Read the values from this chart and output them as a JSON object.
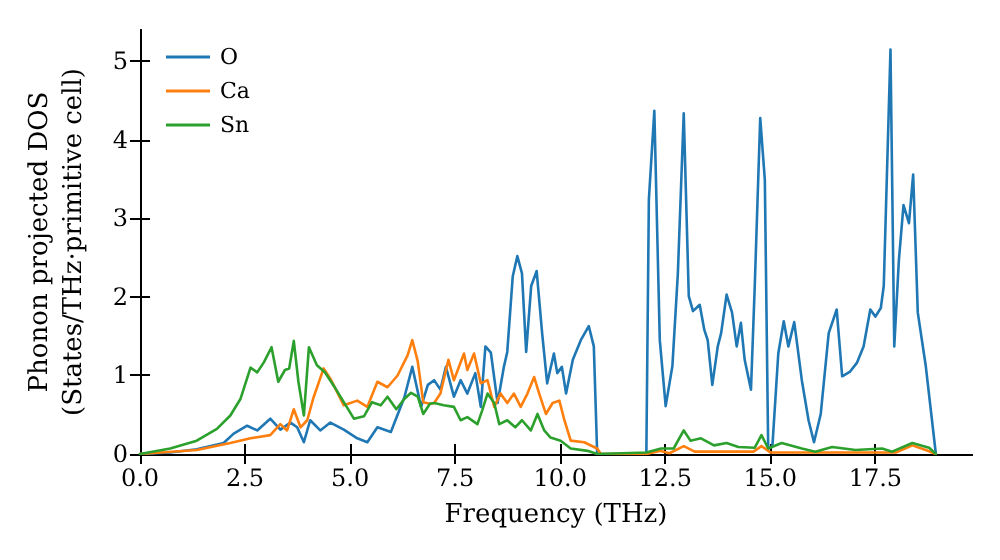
{
  "chart_data": {
    "type": "line",
    "xlabel": "Frequency (THz)",
    "ylabel": "Phonon projected DOS\n(States/THz·primitive cell)",
    "xlim": [
      0,
      19.8
    ],
    "ylim": [
      0,
      5.4
    ],
    "xticks": [
      {
        "value": 0,
        "label": "0.0"
      },
      {
        "value": 2.5,
        "label": "2.5"
      },
      {
        "value": 5,
        "label": "5.0"
      },
      {
        "value": 7.5,
        "label": "7.5"
      },
      {
        "value": 10,
        "label": "10.0"
      },
      {
        "value": 12.5,
        "label": "12.5"
      },
      {
        "value": 15,
        "label": "15.0"
      },
      {
        "value": 17.5,
        "label": "17.5"
      }
    ],
    "yticks": [
      0,
      1,
      2,
      3,
      4,
      5
    ],
    "grid": false,
    "legend": "top left",
    "marker": "none",
    "line_style": "solid",
    "series": [
      {
        "name": "O",
        "color": "#1f77b4",
        "x": [
          0,
          0.72,
          1.35,
          1.99,
          2.23,
          2.55,
          2.79,
          3.1,
          3.34,
          3.58,
          3.74,
          3.9,
          4.05,
          4.29,
          4.53,
          4.85,
          5.17,
          5.41,
          5.65,
          5.97,
          6.29,
          6.48,
          6.69,
          6.85,
          7.0,
          7.15,
          7.28,
          7.47,
          7.63,
          7.79,
          7.98,
          8.11,
          8.22,
          8.35,
          8.51,
          8.66,
          8.74,
          8.87,
          8.98,
          9.09,
          9.19,
          9.31,
          9.44,
          9.57,
          9.69,
          9.85,
          9.93,
          10.04,
          10.14,
          10.3,
          10.49,
          10.68,
          10.8,
          10.88,
          12.05,
          12.11,
          12.24,
          12.37,
          12.51,
          12.67,
          12.8,
          12.94,
          13.06,
          13.16,
          13.32,
          13.43,
          13.51,
          13.62,
          13.75,
          13.83,
          13.96,
          14.09,
          14.2,
          14.3,
          14.39,
          14.54,
          14.63,
          14.76,
          14.87,
          14.95,
          15.05,
          15.19,
          15.32,
          15.43,
          15.57,
          15.75,
          15.91,
          16.04,
          16.2,
          16.39,
          16.58,
          16.71,
          16.9,
          17.06,
          17.22,
          17.38,
          17.5,
          17.63,
          17.7,
          17.86,
          17.95,
          18.06,
          18.17,
          18.3,
          18.4,
          18.51,
          18.7,
          18.94
        ],
        "values": [
          0,
          0.02,
          0.06,
          0.14,
          0.26,
          0.36,
          0.3,
          0.45,
          0.31,
          0.4,
          0.34,
          0.15,
          0.43,
          0.3,
          0.4,
          0.31,
          0.2,
          0.15,
          0.34,
          0.28,
          0.72,
          1.11,
          0.6,
          0.88,
          0.94,
          0.82,
          1.11,
          0.73,
          0.94,
          0.77,
          1.03,
          0.6,
          1.37,
          1.29,
          0.65,
          1.11,
          1.3,
          2.26,
          2.52,
          2.3,
          1.3,
          2.14,
          2.33,
          1.54,
          0.9,
          1.28,
          1.03,
          1.11,
          0.77,
          1.2,
          1.45,
          1.63,
          1.37,
          0,
          0,
          3.24,
          4.37,
          1.45,
          0.61,
          1.12,
          2.3,
          4.34,
          2.01,
          1.82,
          1.9,
          1.58,
          1.45,
          0.88,
          1.37,
          1.54,
          2.03,
          1.8,
          1.37,
          1.67,
          1.2,
          0.82,
          2.14,
          4.28,
          3.49,
          0.07,
          0.1,
          1.28,
          1.69,
          1.37,
          1.68,
          0.94,
          0.43,
          0.15,
          0.51,
          1.54,
          1.84,
          0.99,
          1.05,
          1.16,
          1.37,
          1.84,
          1.75,
          1.86,
          2.14,
          5.15,
          1.37,
          2.47,
          3.17,
          2.94,
          3.56,
          1.8,
          1.12,
          0
        ]
      },
      {
        "name": "Ca",
        "color": "#ff7f0e",
        "x": [
          0,
          1.35,
          2.15,
          2.63,
          3.1,
          3.34,
          3.5,
          3.66,
          3.82,
          3.98,
          4.13,
          4.37,
          4.53,
          4.85,
          5.17,
          5.41,
          5.65,
          5.89,
          6.13,
          6.37,
          6.48,
          6.61,
          6.74,
          6.9,
          7.0,
          7.15,
          7.34,
          7.47,
          7.71,
          7.79,
          7.95,
          8.11,
          8.27,
          8.43,
          8.58,
          8.74,
          8.9,
          9.06,
          9.22,
          9.38,
          9.5,
          9.66,
          9.82,
          9.98,
          10.1,
          10.25,
          10.57,
          10.88,
          10.97,
          12.05,
          12.37,
          12.6,
          12.94,
          13.2,
          14.6,
          14.79,
          15.0,
          18.0,
          18.38,
          18.7,
          18.94
        ],
        "values": [
          0,
          0.05,
          0.14,
          0.2,
          0.24,
          0.38,
          0.3,
          0.57,
          0.34,
          0.43,
          0.72,
          1.09,
          0.96,
          0.62,
          0.68,
          0.6,
          0.92,
          0.85,
          1.0,
          1.26,
          1.45,
          1.18,
          0.66,
          0.64,
          0.65,
          0.77,
          1.2,
          0.94,
          1.28,
          1.07,
          1.28,
          0.9,
          0.94,
          0.6,
          0.77,
          0.65,
          0.77,
          0.6,
          0.77,
          0.98,
          0.77,
          0.51,
          0.65,
          0.68,
          0.43,
          0.17,
          0.15,
          0.07,
          0,
          0,
          0.04,
          0.01,
          0.1,
          0.03,
          0.03,
          0.1,
          0.02,
          0.02,
          0.11,
          0.05,
          0
        ]
      },
      {
        "name": "Sn",
        "color": "#2ca02c",
        "x": [
          0,
          0.72,
          1.35,
          1.83,
          2.15,
          2.39,
          2.63,
          2.79,
          2.95,
          3.13,
          3.29,
          3.45,
          3.55,
          3.66,
          3.77,
          3.9,
          4.02,
          4.21,
          4.4,
          4.61,
          4.85,
          5.09,
          5.33,
          5.52,
          5.73,
          5.89,
          6.1,
          6.29,
          6.45,
          6.61,
          6.74,
          6.9,
          7.0,
          7.23,
          7.47,
          7.63,
          7.79,
          8.03,
          8.14,
          8.27,
          8.43,
          8.55,
          8.74,
          8.93,
          9.09,
          9.3,
          9.46,
          9.62,
          9.77,
          10.01,
          10.25,
          10.65,
          10.88,
          12.05,
          12.4,
          12.7,
          12.94,
          13.1,
          13.35,
          13.66,
          13.96,
          14.24,
          14.63,
          14.79,
          14.95,
          15.27,
          15.75,
          16.07,
          16.47,
          17.03,
          17.66,
          17.9,
          18.38,
          18.78,
          18.94
        ],
        "values": [
          0,
          0.07,
          0.17,
          0.32,
          0.49,
          0.7,
          1.1,
          1.04,
          1.17,
          1.36,
          0.92,
          1.07,
          1.09,
          1.44,
          0.92,
          0.49,
          1.36,
          1.13,
          1.04,
          0.87,
          0.66,
          0.45,
          0.48,
          0.66,
          0.62,
          0.73,
          0.57,
          0.7,
          0.78,
          0.73,
          0.51,
          0.64,
          0.65,
          0.62,
          0.6,
          0.43,
          0.47,
          0.38,
          0.55,
          0.77,
          0.65,
          0.38,
          0.43,
          0.34,
          0.43,
          0.3,
          0.51,
          0.3,
          0.21,
          0.17,
          0.07,
          0.04,
          0,
          0.02,
          0.07,
          0.07,
          0.3,
          0.17,
          0.2,
          0.11,
          0.14,
          0.09,
          0.08,
          0.24,
          0.07,
          0.14,
          0.07,
          0.03,
          0.09,
          0.05,
          0.07,
          0.03,
          0.14,
          0.08,
          0
        ]
      }
    ]
  }
}
